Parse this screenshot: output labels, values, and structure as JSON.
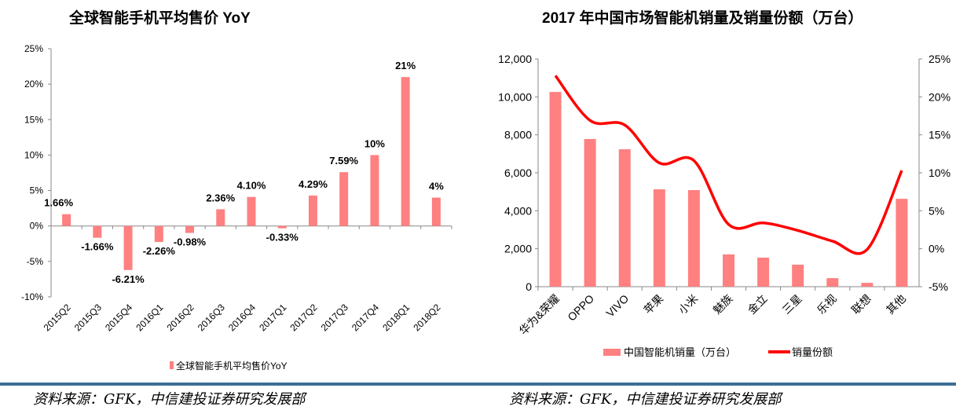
{
  "chart_data": [
    {
      "type": "bar",
      "title": "全球智能手机平均售价 YoY",
      "categories": [
        "2015Q2",
        "2015Q3",
        "2015Q4",
        "2016Q1",
        "2016Q2",
        "2016Q3",
        "2016Q4",
        "2017Q1",
        "2017Q2",
        "2017Q3",
        "2017Q4",
        "2018Q1",
        "2018Q2"
      ],
      "values": [
        1.66,
        -1.66,
        -6.21,
        -2.26,
        -0.98,
        2.36,
        4.1,
        -0.33,
        4.29,
        7.59,
        10,
        21,
        4
      ],
      "data_labels": [
        "1.66%",
        "-1.66%",
        "-6.21%",
        "-2.26%",
        "-0.98%",
        "2.36%",
        "4.10%",
        "-0.33%",
        "4.29%",
        "7.59%",
        "10%",
        "21%",
        "4%"
      ],
      "ylim": [
        -10,
        25
      ],
      "yticks": [
        "-10%",
        "-5%",
        "0%",
        "5%",
        "10%",
        "15%",
        "20%",
        "25%"
      ],
      "legend": "全球智能手机平均售价YoY",
      "legend_position": "bottom",
      "color": "#ff8080"
    },
    {
      "type": "bar+line",
      "title": "2017 年中国市场智能机销量及销量份额（万台）",
      "categories": [
        "华为&荣耀",
        "OPPO",
        "VIVO",
        "苹果",
        "小米",
        "魅族",
        "金立",
        "三星",
        "乐视",
        "联想",
        "其他"
      ],
      "series": [
        {
          "name": "中国智能机销量（万台）",
          "type": "bar",
          "axis": "left",
          "values": [
            10260,
            7780,
            7240,
            5130,
            5090,
            1700,
            1530,
            1160,
            450,
            200,
            4630
          ],
          "color": "#ff8080"
        },
        {
          "name": "销量份额",
          "type": "line",
          "axis": "right",
          "values": [
            22.8,
            16.9,
            16.3,
            11.3,
            11.6,
            3.2,
            3.4,
            2.4,
            1.0,
            -0.1,
            10.3
          ],
          "color": "#ff0000"
        }
      ],
      "ylim": [
        0,
        12000
      ],
      "yticks": [
        "0",
        "2,000",
        "4,000",
        "6,000",
        "8,000",
        "10,000",
        "12,000"
      ],
      "y2lim": [
        -5,
        25
      ],
      "y2ticks": [
        "-5%",
        "0%",
        "5%",
        "10%",
        "15%",
        "20%",
        "25%"
      ],
      "legend_position": "bottom"
    }
  ],
  "sources": [
    "资料来源：GFK，中信建投证券研究发展部",
    "资料来源：GFK，中信建投证券研究发展部"
  ]
}
